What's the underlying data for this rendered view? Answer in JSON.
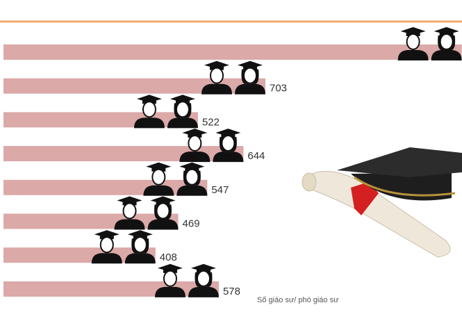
{
  "chart_data": {
    "type": "bar",
    "orientation": "horizontal",
    "values": [
      1230,
      703,
      522,
      644,
      547,
      469,
      408,
      578
    ],
    "color": "#dba9a8",
    "xlim": [
      0,
      1240
    ],
    "x_label": "Số giáo sư/ phó giáo sư"
  }
}
